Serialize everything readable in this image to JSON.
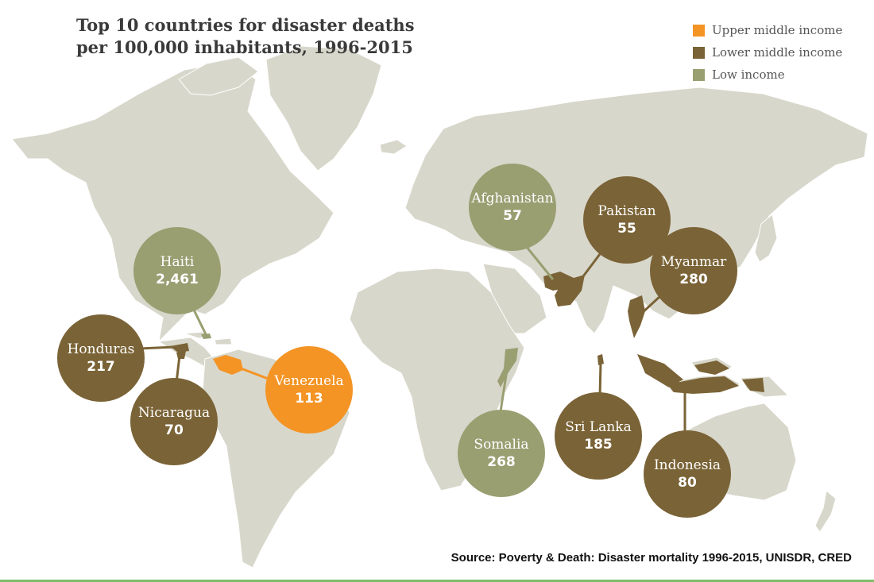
{
  "title": {
    "line1": "Top 10 countries for disaster deaths",
    "line2": "per 100,000 inhabitants, 1996-2015"
  },
  "legend": [
    {
      "label": "Upper middle income",
      "color": "#f39425"
    },
    {
      "label": "Lower middle income",
      "color": "#7a6336"
    },
    {
      "label": "Low income",
      "color": "#9a9f72"
    }
  ],
  "countries": [
    {
      "name": "Haiti",
      "value": "2,461",
      "income": "Low income"
    },
    {
      "name": "Honduras",
      "value": "217",
      "income": "Lower middle income"
    },
    {
      "name": "Nicaragua",
      "value": "70",
      "income": "Lower middle income"
    },
    {
      "name": "Venezuela",
      "value": "113",
      "income": "Upper middle income"
    },
    {
      "name": "Afghanistan",
      "value": "57",
      "income": "Low income"
    },
    {
      "name": "Pakistan",
      "value": "55",
      "income": "Lower middle income"
    },
    {
      "name": "Myanmar",
      "value": "280",
      "income": "Lower middle income"
    },
    {
      "name": "Somalia",
      "value": "268",
      "income": "Low income"
    },
    {
      "name": "Sri Lanka",
      "value": "185",
      "income": "Lower middle income"
    },
    {
      "name": "Indonesia",
      "value": "80",
      "income": "Lower middle income"
    }
  ],
  "colors": {
    "land": "#d8d7cb",
    "upper_middle": "#f39425",
    "lower_middle": "#7a6336",
    "low": "#9a9f72"
  },
  "source": "Source: Poverty & Death: Disaster mortality 1996-2015, UNISDR, CRED"
}
